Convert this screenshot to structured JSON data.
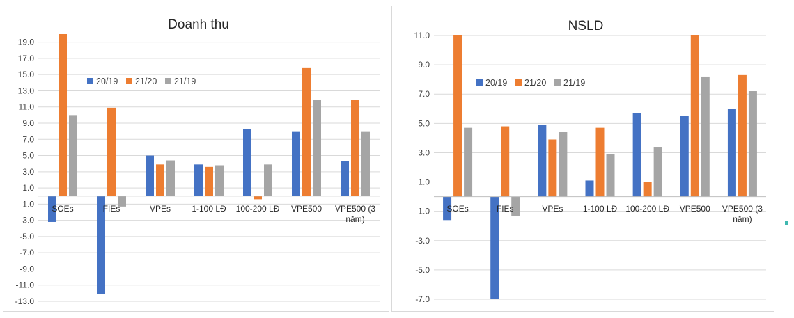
{
  "chart_data": [
    {
      "type": "bar",
      "title": "Doanh thu",
      "categories": [
        "SOEs",
        "FIEs",
        "VPEs",
        "1-100 LĐ",
        "100-200 LĐ",
        "VPE500",
        "VPE500 (3 năm)"
      ],
      "category_lines": [
        [
          "SOEs"
        ],
        [
          "FIEs"
        ],
        [
          "VPEs"
        ],
        [
          "1-100 LĐ"
        ],
        [
          "100-200 LĐ"
        ],
        [
          "VPE500"
        ],
        [
          "VPE500 (3",
          "năm)"
        ]
      ],
      "series": [
        {
          "name": "20/19",
          "color": "#4472c4",
          "values": [
            -3.2,
            -12.1,
            5.0,
            3.9,
            8.3,
            8.0,
            4.3
          ]
        },
        {
          "name": "21/20",
          "color": "#ed7d31",
          "values": [
            20.0,
            10.9,
            3.9,
            3.6,
            -0.4,
            15.8,
            11.9
          ]
        },
        {
          "name": "21/19",
          "color": "#a5a5a5",
          "values": [
            10.0,
            -1.3,
            4.4,
            3.8,
            3.9,
            11.9,
            8.0
          ]
        }
      ],
      "yticks": [
        "19.0",
        "17.0",
        "15.0",
        "13.0",
        "11.0",
        "9.0",
        "7.0",
        "5.0",
        "3.0",
        "1.0",
        "-1.0",
        "-3.0",
        "-5.0",
        "-7.0",
        "-9.0",
        "-11.0",
        "-13.0"
      ],
      "ylim": [
        -13,
        20
      ],
      "grid": true,
      "legend_position": "inside-top-left"
    },
    {
      "type": "bar",
      "title": "NSLD",
      "categories": [
        "SOEs",
        "FIEs",
        "VPEs",
        "1-100 LĐ",
        "100-200 LĐ",
        "VPE500",
        "VPE500 (3 năm)"
      ],
      "category_lines": [
        [
          "SOEs"
        ],
        [
          "FIEs"
        ],
        [
          "VPEs"
        ],
        [
          "1-100 LĐ"
        ],
        [
          "100-200 LĐ"
        ],
        [
          "VPE500"
        ],
        [
          "VPE500 (3",
          "năm)"
        ]
      ],
      "series": [
        {
          "name": "20/19",
          "color": "#4472c4",
          "values": [
            -1.6,
            -7.0,
            4.9,
            1.1,
            5.7,
            5.5,
            6.0
          ]
        },
        {
          "name": "21/20",
          "color": "#ed7d31",
          "values": [
            11.0,
            4.8,
            3.9,
            4.7,
            1.0,
            11.0,
            8.3
          ]
        },
        {
          "name": "21/19",
          "color": "#a5a5a5",
          "values": [
            4.7,
            -1.3,
            4.4,
            2.9,
            3.4,
            8.2,
            7.2
          ]
        }
      ],
      "yticks": [
        "11.0",
        "9.0",
        "7.0",
        "5.0",
        "3.0",
        "1.0",
        "-1.0",
        "-3.0",
        "-5.0",
        "-7.0"
      ],
      "ylim": [
        -7,
        11
      ],
      "grid": true,
      "legend_position": "inside-top-left"
    }
  ]
}
